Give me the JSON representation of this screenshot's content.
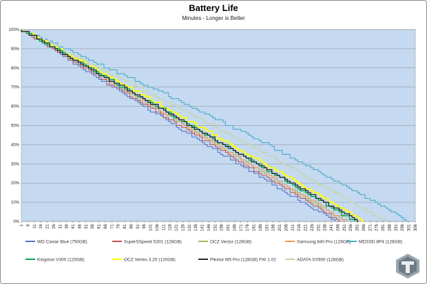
{
  "chart_data": {
    "type": "line",
    "title": "Battery Life",
    "subtitle": "Minutes - Longer is Better",
    "xlabel": "",
    "ylabel": "",
    "xlim": [
      1,
      306
    ],
    "ylim": [
      0,
      100
    ],
    "x_ticks": [
      1,
      6,
      11,
      16,
      21,
      26,
      31,
      36,
      41,
      46,
      51,
      56,
      61,
      66,
      71,
      76,
      81,
      86,
      91,
      96,
      101,
      106,
      111,
      116,
      121,
      126,
      131,
      136,
      141,
      146,
      151,
      156,
      161,
      166,
      171,
      176,
      181,
      186,
      191,
      196,
      201,
      206,
      211,
      216,
      221,
      226,
      231,
      236,
      241,
      246,
      251,
      256,
      261,
      266,
      271,
      276,
      281,
      286,
      291,
      296,
      301,
      306
    ],
    "y_ticks": [
      "0%",
      "10%",
      "20%",
      "30%",
      "40%",
      "50%",
      "60%",
      "70%",
      "80%",
      "90%",
      "100%"
    ],
    "grid": true,
    "legend_position": "bottom",
    "series": [
      {
        "name": "WD Caviar Blue (750GB)",
        "color": "#4f6fbf",
        "end": 244
      },
      {
        "name": "SuperSSpeed S301 (128GB)",
        "color": "#c0504d",
        "end": 248
      },
      {
        "name": "OCZ Vector (128GB)",
        "color": "#9bbb59",
        "end": 251
      },
      {
        "name": "Samsung 840 Pro (128GB)",
        "color": "#f79646",
        "end": 253
      },
      {
        "name": "MDSSD 8P4 (128GB)",
        "color": "#4aacc6",
        "end": 301
      },
      {
        "name": "Kingston V300 (120GB)",
        "color": "#00a550",
        "end": 259
      },
      {
        "name": "OCZ Vertex 3.20 (120GB)",
        "color": "#ffff00",
        "end": 266
      },
      {
        "name": "Plextor M5 Pro (128GB) FW 1.02",
        "color": "#262626",
        "end": 262
      },
      {
        "name": "ADATA SX900 (128GB)",
        "color": "#c4d79b",
        "end": 283
      }
    ]
  }
}
